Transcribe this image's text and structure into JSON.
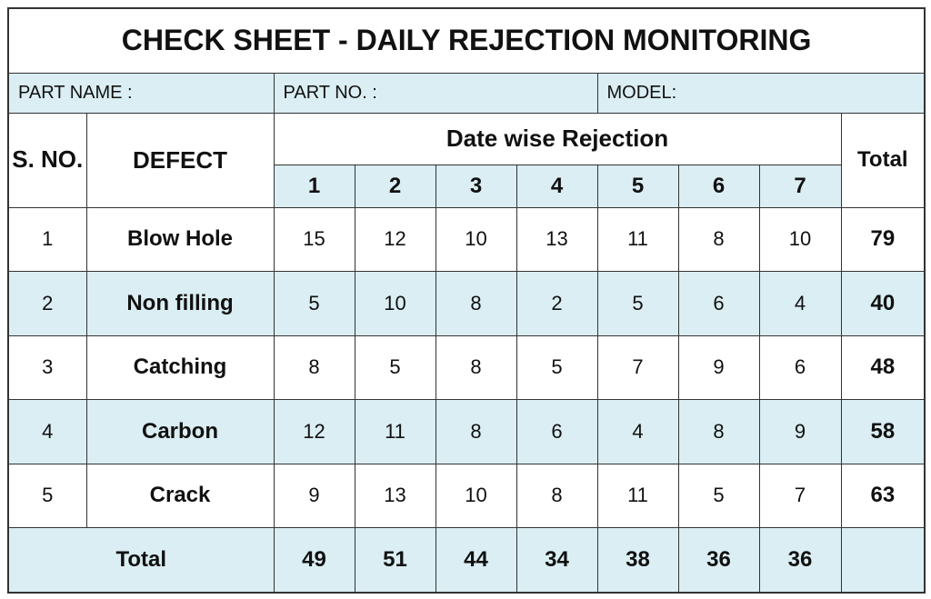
{
  "title": "CHECK SHEET - DAILY REJECTION MONITORING",
  "info": {
    "part_name": "PART NAME :",
    "part_no": "PART NO.  :",
    "model": "MODEL:"
  },
  "table": {
    "header": {
      "sno": "S. NO.",
      "defect": "DEFECT",
      "group": "Date wise Rejection",
      "days": [
        1,
        2,
        3,
        4,
        5,
        6,
        7
      ],
      "total": "Total"
    },
    "rows": [
      [
        1,
        "Blow Hole",
        15,
        12,
        10,
        13,
        11,
        8,
        10,
        79
      ],
      [
        2,
        "Non filling",
        5,
        10,
        8,
        2,
        5,
        6,
        4,
        40
      ],
      [
        3,
        "Catching",
        8,
        5,
        8,
        5,
        7,
        9,
        6,
        48
      ],
      [
        4,
        "Carbon",
        12,
        11,
        8,
        6,
        4,
        8,
        9,
        58
      ],
      [
        5,
        "Crack",
        9,
        13,
        10,
        8,
        11,
        5,
        7,
        63
      ]
    ],
    "footer": {
      "label": "Total",
      "values": [
        49,
        51,
        44,
        34,
        38,
        36,
        36
      ]
    }
  }
}
